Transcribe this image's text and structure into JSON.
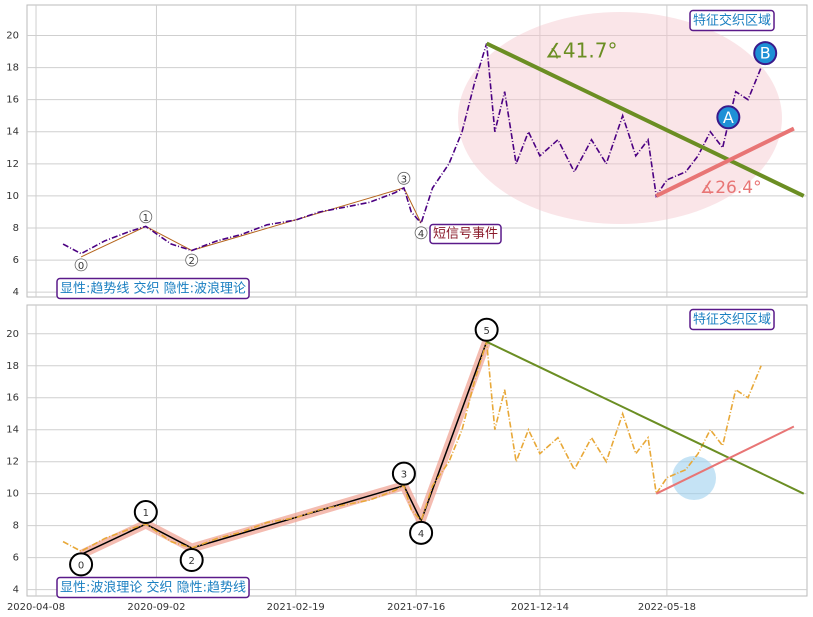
{
  "chart_data": [
    {
      "type": "line",
      "annotations": [
        "显性:趋势线 交织 隐性:波浪理论",
        "特征交织区域",
        "短信号事件",
        "∡41.7°",
        "∡26.4°",
        "A",
        "B"
      ],
      "xlim": [
        "2020-03-28",
        "2022-11-05"
      ],
      "ylim": [
        3.7,
        21.9
      ],
      "yticks": [
        4,
        6,
        8,
        10,
        12,
        14,
        16,
        18,
        20
      ],
      "xticks": [
        "2020-04-08",
        "2020-09-02",
        "2021-02-19",
        "2021-07-16",
        "2021-12-14",
        "2022-05-18"
      ],
      "grid": true,
      "series": [
        {
          "color": "#4b0082",
          "x": [
            "2020-05-11",
            "2020-06-02",
            "2020-07-01",
            "2020-08-01",
            "2020-08-20",
            "2020-09-20",
            "2020-10-15",
            "2020-11-15",
            "2020-12-15",
            "2021-01-15",
            "2021-02-19",
            "2021-03-20",
            "2021-04-20",
            "2021-05-20",
            "2021-06-20",
            "2021-07-01",
            "2021-07-10",
            "2021-07-22",
            "2021-08-05",
            "2021-08-25",
            "2021-09-10",
            "2021-09-25",
            "2021-10-10",
            "2021-10-20",
            "2021-11-01",
            "2021-11-15",
            "2021-11-30",
            "2021-12-14",
            "2022-01-05",
            "2022-01-25",
            "2022-02-15",
            "2022-03-05",
            "2022-03-25",
            "2022-04-10",
            "2022-04-25",
            "2022-05-05",
            "2022-05-18",
            "2022-06-10",
            "2022-06-25",
            "2022-07-10",
            "2022-07-25",
            "2022-08-10",
            "2022-08-25",
            "2022-09-10"
          ],
          "values": [
            7.0,
            6.4,
            7.2,
            7.8,
            8.1,
            7.0,
            6.6,
            7.2,
            7.6,
            8.2,
            8.5,
            9.0,
            9.3,
            9.6,
            10.2,
            10.5,
            9.0,
            8.3,
            10.5,
            12.0,
            14.0,
            17.0,
            19.5,
            14.0,
            16.5,
            12.0,
            14.0,
            12.5,
            13.5,
            11.5,
            13.5,
            12.0,
            15.0,
            12.5,
            13.5,
            10.0,
            11.0,
            11.5,
            12.5,
            14.0,
            13.0,
            16.5,
            16.0,
            18.0
          ]
        }
      ],
      "waves": {
        "labels": [
          "0",
          "1",
          "2",
          "3",
          "4"
        ],
        "x": [
          "2020-06-02",
          "2020-08-20",
          "2020-10-15",
          "2021-07-01",
          "2021-07-22"
        ],
        "y": [
          6.2,
          8.1,
          6.6,
          10.5,
          8.3
        ]
      },
      "points": {
        "labels": [
          "A",
          "B"
        ],
        "x": [
          "2022-08-01",
          "2022-09-15"
        ],
        "y": [
          14.9,
          18.9
        ]
      },
      "trend": [
        {
          "color": "#6b8e23",
          "x": [
            "2021-10-10",
            "2022-11-01"
          ],
          "y": [
            19.5,
            10.0
          ]
        },
        {
          "color": "#e87575",
          "x": [
            "2022-05-05",
            "2022-10-20"
          ],
          "y": [
            10.0,
            14.2
          ]
        }
      ]
    },
    {
      "type": "line",
      "annotations": [
        "显性:波浪理论 交织 隐性:趋势线",
        "特征交织区域"
      ],
      "xlim": [
        "2020-03-28",
        "2022-11-05"
      ],
      "ylim": [
        3.6,
        21.8
      ],
      "yticks": [
        4,
        6,
        8,
        10,
        12,
        14,
        16,
        18,
        20
      ],
      "xticks": [
        "2020-04-08",
        "2020-09-02",
        "2021-02-19",
        "2021-07-16",
        "2021-12-14",
        "2022-05-18"
      ],
      "grid": true,
      "series": [
        {
          "color": "#e8a838",
          "x": [
            "2020-05-11",
            "2020-06-02",
            "2020-07-01",
            "2020-08-01",
            "2020-08-20",
            "2020-09-20",
            "2020-10-15",
            "2020-11-15",
            "2020-12-15",
            "2021-01-15",
            "2021-02-19",
            "2021-03-20",
            "2021-04-20",
            "2021-05-20",
            "2021-06-20",
            "2021-07-01",
            "2021-07-10",
            "2021-07-22",
            "2021-08-05",
            "2021-08-25",
            "2021-09-10",
            "2021-09-25",
            "2021-10-10",
            "2021-10-20",
            "2021-11-01",
            "2021-11-15",
            "2021-11-30",
            "2021-12-14",
            "2022-01-05",
            "2022-01-25",
            "2022-02-15",
            "2022-03-05",
            "2022-03-25",
            "2022-04-10",
            "2022-04-25",
            "2022-05-05",
            "2022-05-18",
            "2022-06-10",
            "2022-06-25",
            "2022-07-10",
            "2022-07-25",
            "2022-08-10",
            "2022-08-25",
            "2022-09-10"
          ],
          "values": [
            7.0,
            6.4,
            7.2,
            7.8,
            8.1,
            7.0,
            6.6,
            7.2,
            7.6,
            8.2,
            8.5,
            9.0,
            9.3,
            9.6,
            10.2,
            10.5,
            9.0,
            8.3,
            10.5,
            12.0,
            14.0,
            17.0,
            19.5,
            14.0,
            16.5,
            12.0,
            14.0,
            12.5,
            13.5,
            11.5,
            13.5,
            12.0,
            15.0,
            12.5,
            13.5,
            10.0,
            11.0,
            11.5,
            12.5,
            14.0,
            13.0,
            16.5,
            16.0,
            18.0
          ]
        }
      ],
      "waves": {
        "labels": [
          "0",
          "1",
          "2",
          "3",
          "4",
          "5"
        ],
        "x": [
          "2020-06-02",
          "2020-08-20",
          "2020-10-15",
          "2021-07-01",
          "2021-07-22",
          "2021-10-10"
        ],
        "y": [
          6.2,
          8.1,
          6.6,
          10.5,
          8.3,
          19.5
        ]
      },
      "trend": [
        {
          "color": "#6b8e23",
          "x": [
            "2021-10-10",
            "2022-11-01"
          ],
          "y": [
            19.5,
            10.0
          ]
        },
        {
          "color": "#e87575",
          "x": [
            "2022-05-05",
            "2022-10-20"
          ],
          "y": [
            10.0,
            14.2
          ]
        }
      ]
    }
  ]
}
